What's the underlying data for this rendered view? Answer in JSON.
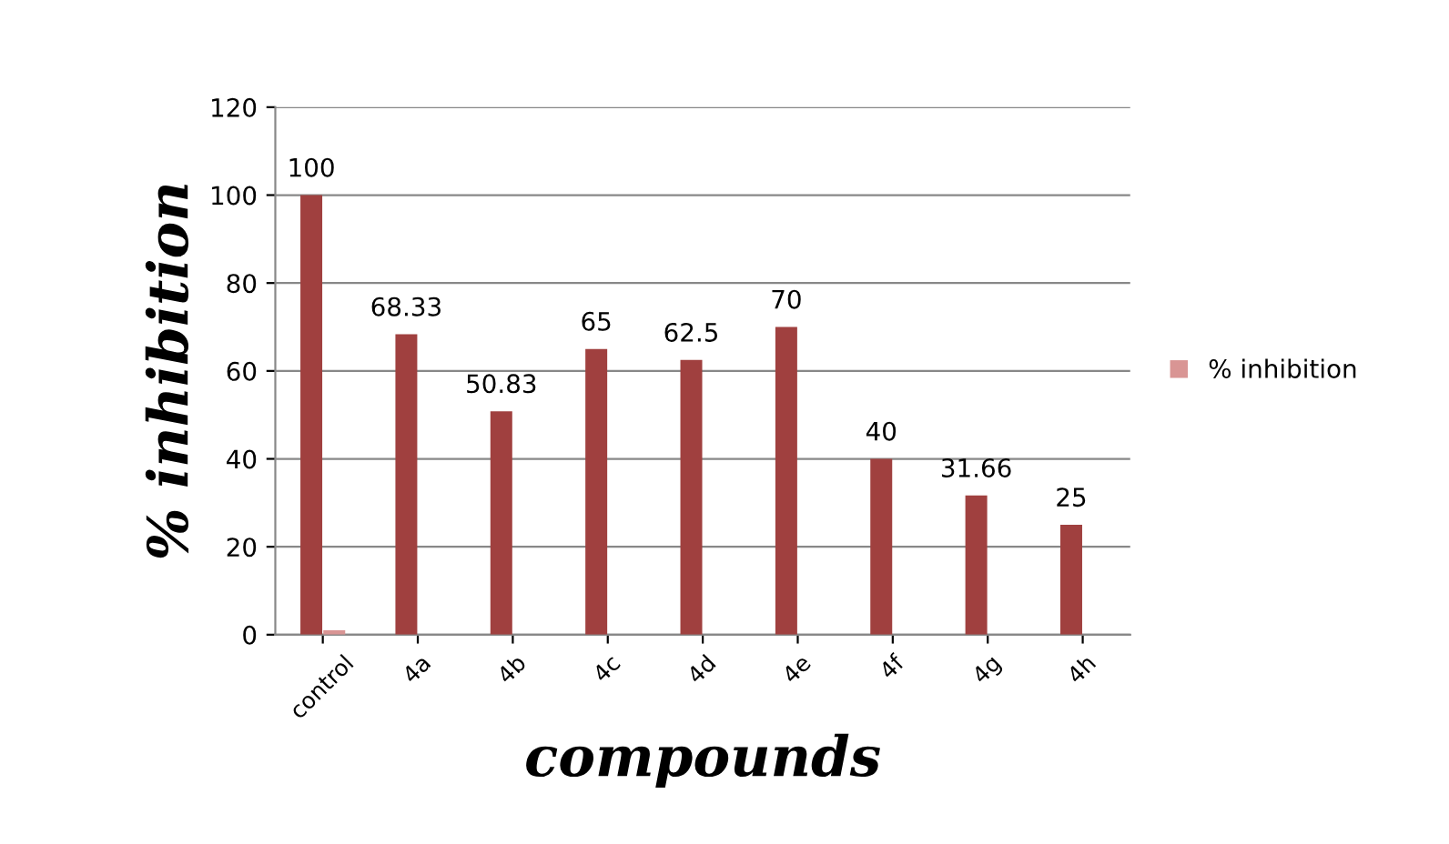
{
  "chart_data": {
    "type": "bar",
    "xlabel": "compounds",
    "ylabel": "% inhibition",
    "categories": [
      "control",
      "4a",
      "4b",
      "4c",
      "4d",
      "4e",
      "4f",
      "4g",
      "4h"
    ],
    "series": [
      {
        "color": "#a0403f",
        "values": [
          100,
          68.33,
          50.83,
          65,
          62.5,
          70,
          40,
          31.66,
          25
        ],
        "value_labels": [
          "100",
          "68.33",
          "50.83",
          "65",
          "62.5",
          "70",
          "40",
          "31.66",
          "25"
        ]
      },
      {
        "name": "% inhibition",
        "color": "#d99594",
        "values": [
          1,
          null,
          null,
          null,
          null,
          null,
          null,
          null,
          null
        ]
      }
    ],
    "ylim": [
      0,
      120
    ],
    "yticks": [
      0,
      20,
      40,
      60,
      80,
      100,
      120
    ],
    "grid": "y",
    "legend": "right"
  }
}
